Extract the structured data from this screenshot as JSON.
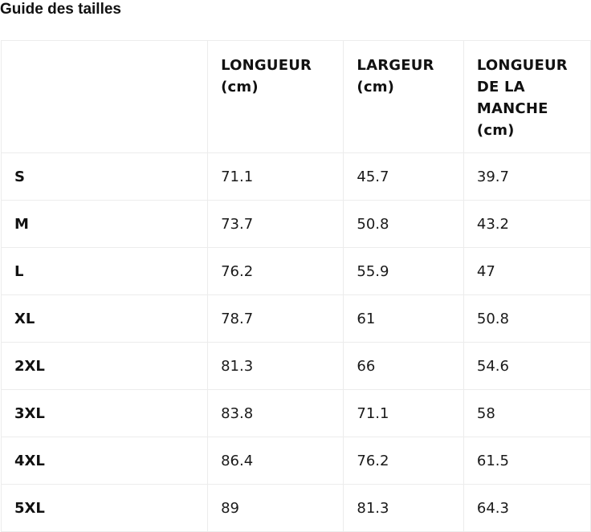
{
  "title": "Guide des tailles",
  "table": {
    "headers": [
      "",
      "LONGUEUR (cm)",
      "LARGEUR (cm)",
      "LONGUEUR DE LA MANCHE (cm)"
    ],
    "rows": [
      {
        "size": "S",
        "longueur": "71.1",
        "largeur": "45.7",
        "manche": "39.7"
      },
      {
        "size": "M",
        "longueur": "73.7",
        "largeur": "50.8",
        "manche": "43.2"
      },
      {
        "size": "L",
        "longueur": "76.2",
        "largeur": "55.9",
        "manche": "47"
      },
      {
        "size": "XL",
        "longueur": "78.7",
        "largeur": "61",
        "manche": "50.8"
      },
      {
        "size": "2XL",
        "longueur": "81.3",
        "largeur": "66",
        "manche": "54.6"
      },
      {
        "size": "3XL",
        "longueur": "83.8",
        "largeur": "71.1",
        "manche": "58"
      },
      {
        "size": "4XL",
        "longueur": "86.4",
        "largeur": "76.2",
        "manche": "61.5"
      },
      {
        "size": "5XL",
        "longueur": "89",
        "largeur": "81.3",
        "manche": "64.3"
      }
    ]
  }
}
